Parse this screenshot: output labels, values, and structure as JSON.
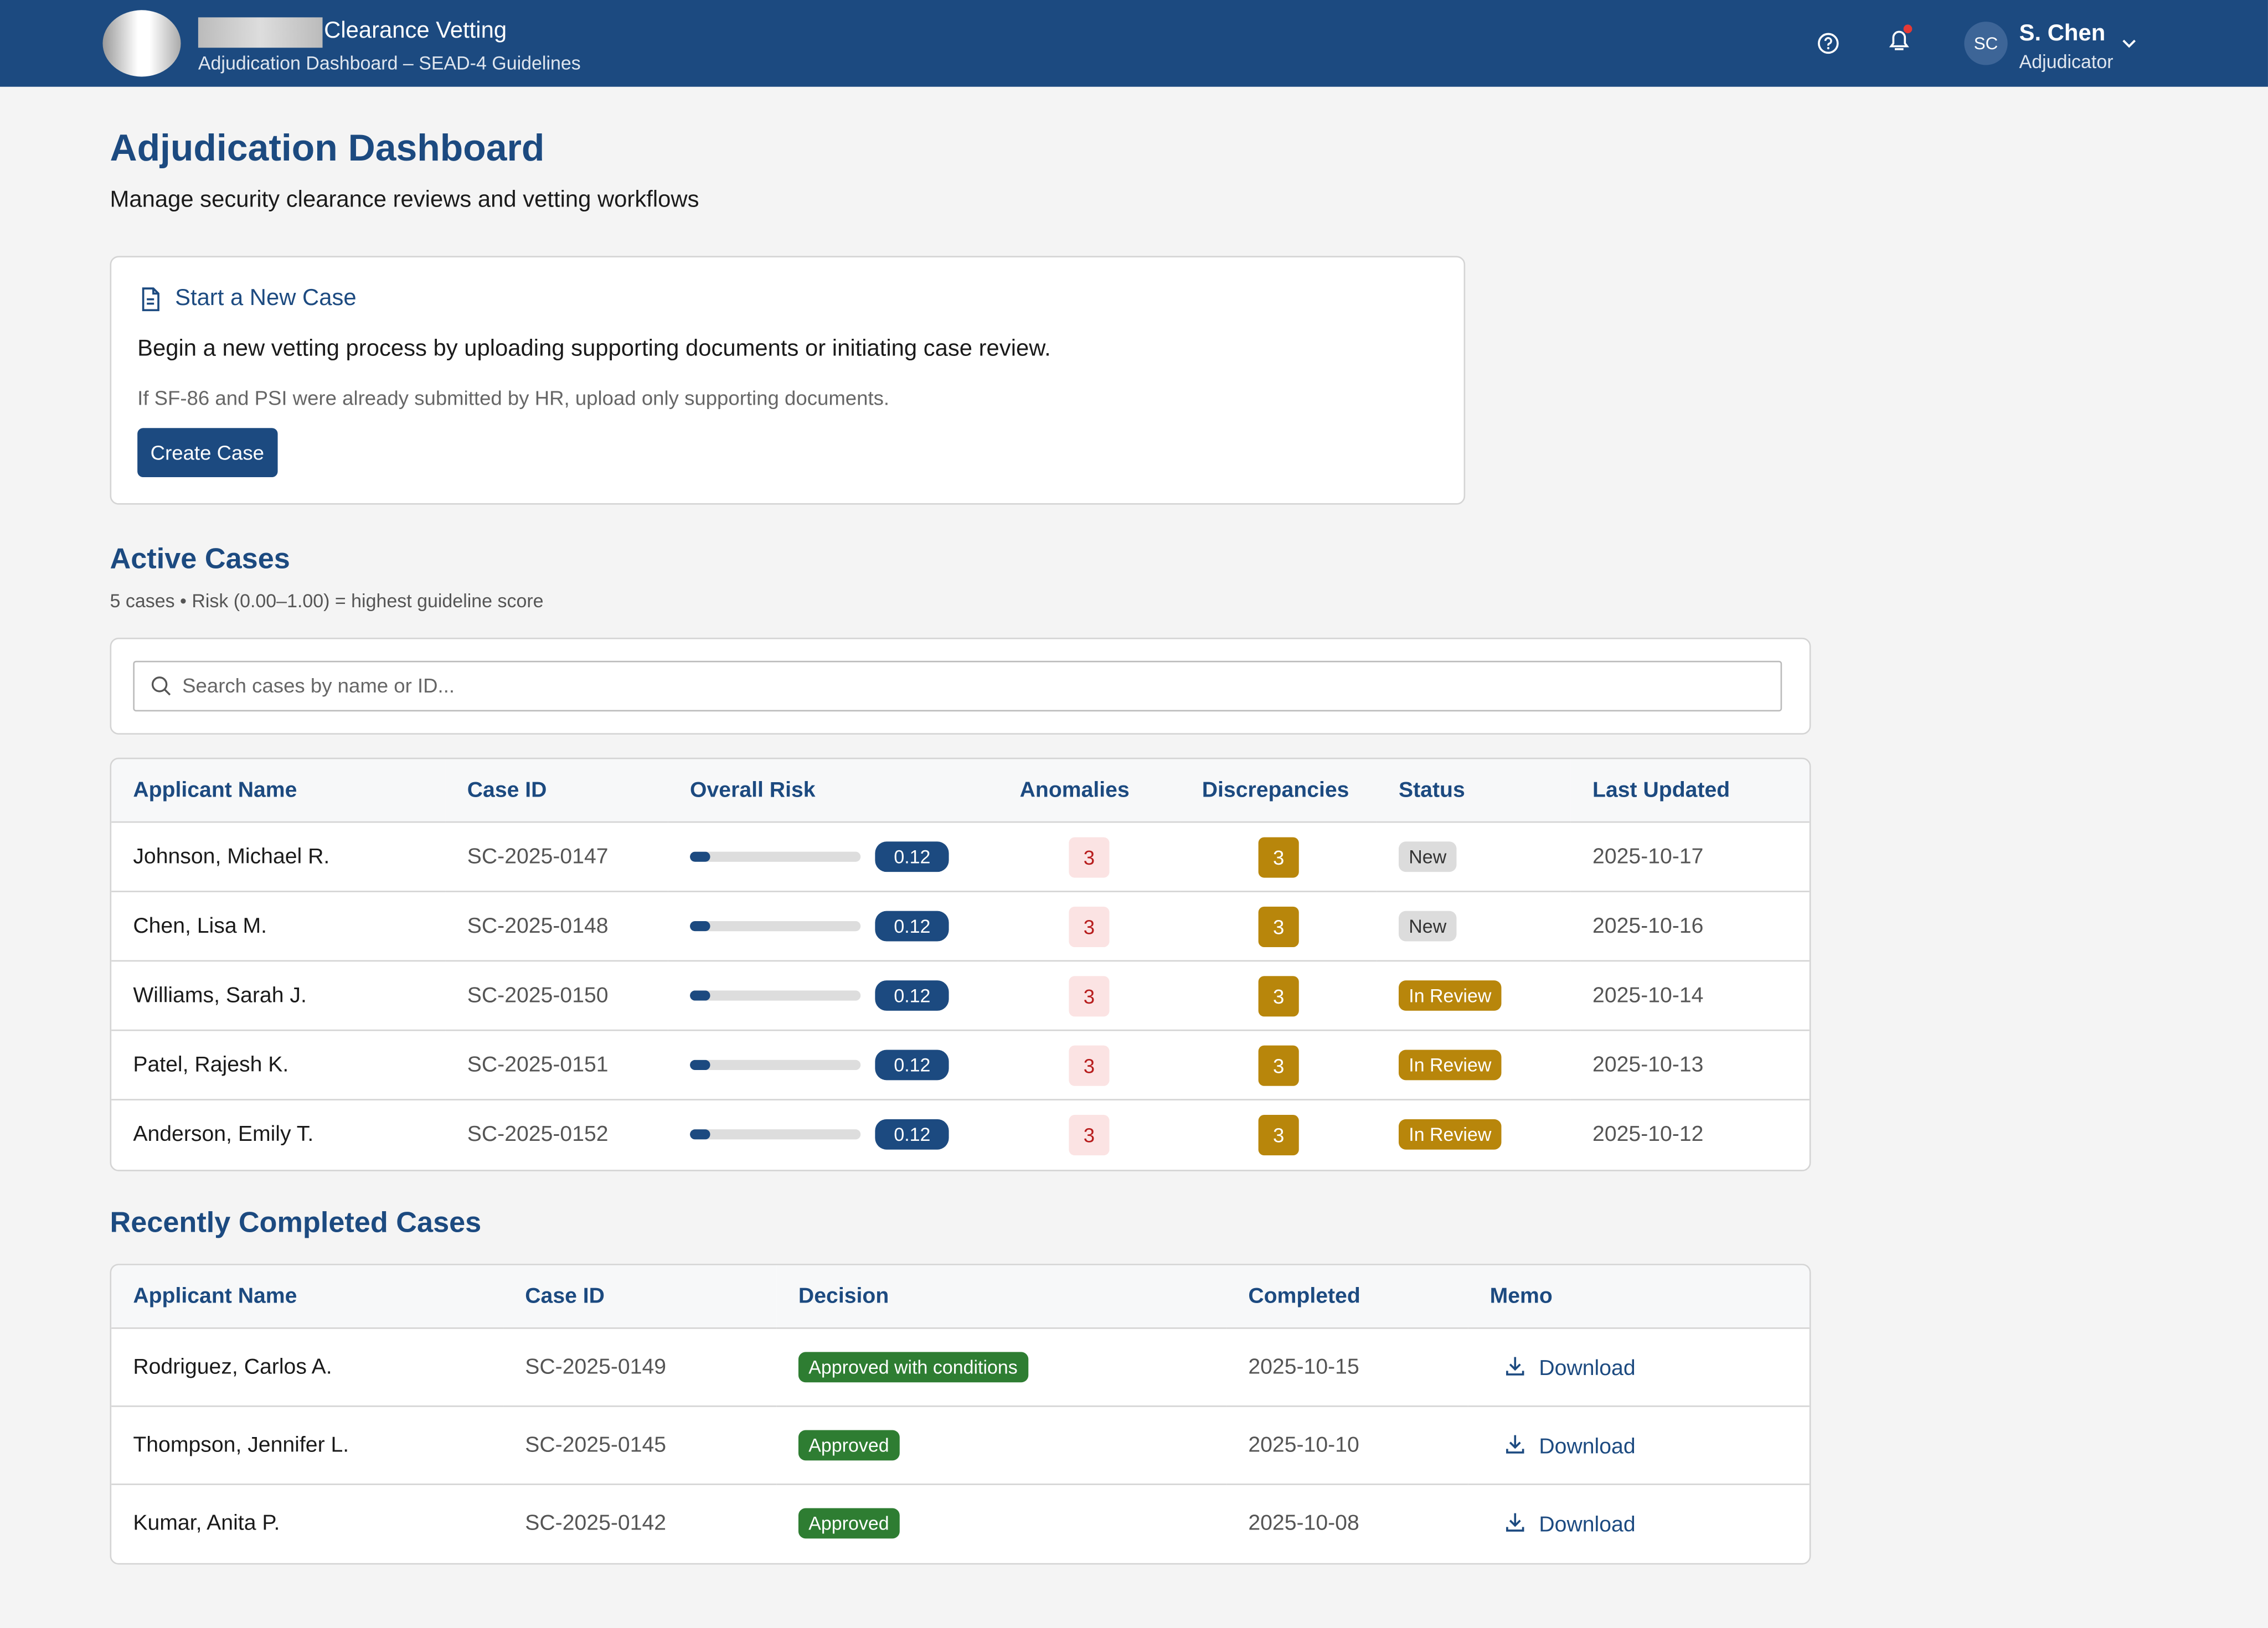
{
  "header": {
    "app_title": "Clearance Vetting",
    "app_subtitle": "Adjudication Dashboard – SEAD-4 Guidelines",
    "user_initials": "SC",
    "user_name": "S. Chen",
    "user_role": "Adjudicator"
  },
  "page": {
    "title": "Adjudication Dashboard",
    "subtitle": "Manage security clearance reviews and vetting workflows"
  },
  "new_case": {
    "title": "Start a New Case",
    "description": "Begin a new vetting process by uploading supporting documents or initiating case review.",
    "note": "If SF-86 and PSI were already submitted by HR, upload only supporting documents.",
    "button": "Create Case"
  },
  "active_cases": {
    "title": "Active Cases",
    "summary": "5 cases • Risk (0.00–1.00) = highest guideline score",
    "search_placeholder": "Search cases by name or ID...",
    "columns": [
      "Applicant Name",
      "Case ID",
      "Overall Risk",
      "Anomalies",
      "Discrepancies",
      "Status",
      "Last Updated"
    ],
    "rows": [
      {
        "name": "Johnson, Michael R.",
        "case_id": "SC-2025-0147",
        "risk": 0.12,
        "anomalies": 3,
        "discrepancies": 3,
        "status": "New",
        "status_color": "#dcdcdc",
        "last_updated": "2025-10-17"
      },
      {
        "name": "Chen, Lisa M.",
        "case_id": "SC-2025-0148",
        "risk": 0.12,
        "anomalies": 3,
        "discrepancies": 3,
        "status": "New",
        "status_color": "#dcdcdc",
        "last_updated": "2025-10-16"
      },
      {
        "name": "Williams, Sarah J.",
        "case_id": "SC-2025-0150",
        "risk": 0.12,
        "anomalies": 3,
        "discrepancies": 3,
        "status": "In Review",
        "status_color": "#b8860b",
        "last_updated": "2025-10-14"
      },
      {
        "name": "Patel, Rajesh K.",
        "case_id": "SC-2025-0151",
        "risk": 0.12,
        "anomalies": 3,
        "discrepancies": 3,
        "status": "In Review",
        "status_color": "#b8860b",
        "last_updated": "2025-10-13"
      },
      {
        "name": "Anderson, Emily T.",
        "case_id": "SC-2025-0152",
        "risk": 0.12,
        "anomalies": 3,
        "discrepancies": 3,
        "status": "In Review",
        "status_color": "#b8860b",
        "last_updated": "2025-10-12"
      }
    ]
  },
  "completed_cases": {
    "title": "Recently Completed Cases",
    "columns": [
      "Applicant Name",
      "Case ID",
      "Decision",
      "Completed",
      "Memo"
    ],
    "rows": [
      {
        "name": "Rodriguez, Carlos A.",
        "case_id": "SC-2025-0149",
        "decision": "Approved with conditions",
        "completed": "2025-10-15",
        "memo": "Download"
      },
      {
        "name": "Thompson, Jennifer L.",
        "case_id": "SC-2025-0145",
        "decision": "Approved",
        "completed": "2025-10-10",
        "memo": "Download"
      },
      {
        "name": "Kumar, Anita P.",
        "case_id": "SC-2025-0142",
        "decision": "Approved",
        "completed": "2025-10-08",
        "memo": "Download"
      }
    ]
  }
}
